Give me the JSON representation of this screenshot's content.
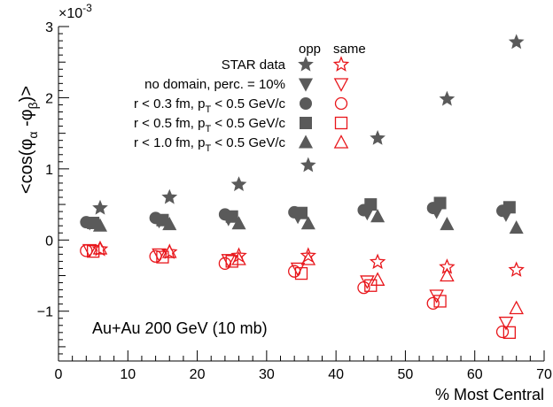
{
  "chart_data": {
    "type": "scatter",
    "title": "",
    "xlabel": "% Most Central",
    "ylabel": "<cos(φ_α - φ_β)>",
    "y_multiplier": "×10^-3",
    "xlim": [
      0,
      70
    ],
    "ylim": [
      -1.7,
      3.0
    ],
    "x_ticks": [
      0,
      10,
      20,
      30,
      40,
      50,
      60,
      70
    ],
    "y_ticks": [
      -1,
      0,
      1,
      2,
      3
    ],
    "grid": false,
    "annotation": "Au+Au 200 GeV (10 mb)",
    "legend": {
      "placement": "top-center",
      "col_headers": [
        "opp",
        "same"
      ],
      "rows": [
        {
          "label": "STAR data",
          "marker": "star"
        },
        {
          "label": "no domain, perc. = 10%",
          "marker": "triangle-down"
        },
        {
          "label": "r < 0.3 fm, p_T < 0.5 GeV/c",
          "marker": "circle"
        },
        {
          "label": "r < 0.5 fm, p_T < 0.5 GeV/c",
          "marker": "square"
        },
        {
          "label": "r < 1.0 fm, p_T < 0.5 GeV/c",
          "marker": "triangle-up"
        }
      ]
    },
    "colors": {
      "opp": "#5a5a5a",
      "same": "#e8161b"
    },
    "series": [
      {
        "name": "STAR data",
        "charge": "opp",
        "marker": "star",
        "x": [
          6,
          16,
          26,
          36,
          46,
          56,
          66
        ],
        "y": [
          0.45,
          0.6,
          0.78,
          1.05,
          1.43,
          1.98,
          2.78
        ]
      },
      {
        "name": "STAR data",
        "charge": "same",
        "marker": "star",
        "x": [
          6,
          16,
          26,
          36,
          46,
          56,
          66
        ],
        "y": [
          -0.13,
          -0.17,
          -0.22,
          -0.22,
          -0.31,
          -0.38,
          -0.42
        ]
      },
      {
        "name": "no domain, perc. = 10%",
        "charge": "opp",
        "marker": "triangle-down",
        "x": [
          4.5,
          14.5,
          24.5,
          34.5,
          44.5,
          54.5,
          64.5
        ],
        "y": [
          0.24,
          0.27,
          0.3,
          0.33,
          0.38,
          0.4,
          0.36
        ]
      },
      {
        "name": "no domain, perc. = 10%",
        "charge": "same",
        "marker": "triangle-down",
        "x": [
          4.5,
          14.5,
          24.5,
          34.5,
          44.5,
          54.5,
          64.5
        ],
        "y": [
          -0.14,
          -0.2,
          -0.28,
          -0.4,
          -0.58,
          -0.78,
          -1.16
        ]
      },
      {
        "name": "r < 0.3 fm, p_T < 0.5 GeV/c",
        "charge": "opp",
        "marker": "circle",
        "x": [
          4,
          14,
          24,
          34,
          44,
          54,
          64
        ],
        "y": [
          0.25,
          0.31,
          0.36,
          0.39,
          0.42,
          0.45,
          0.41
        ]
      },
      {
        "name": "r < 0.3 fm, p_T < 0.5 GeV/c",
        "charge": "same",
        "marker": "circle",
        "x": [
          4,
          14,
          24,
          34,
          44,
          54,
          64
        ],
        "y": [
          -0.15,
          -0.23,
          -0.33,
          -0.44,
          -0.67,
          -0.89,
          -1.29
        ]
      },
      {
        "name": "r < 0.5 fm, p_T < 0.5 GeV/c",
        "charge": "opp",
        "marker": "square",
        "x": [
          5,
          15,
          25,
          35,
          45,
          55,
          65
        ],
        "y": [
          0.24,
          0.28,
          0.33,
          0.38,
          0.5,
          0.52,
          0.46
        ]
      },
      {
        "name": "r < 0.5 fm, p_T < 0.5 GeV/c",
        "charge": "same",
        "marker": "square",
        "x": [
          5,
          15,
          25,
          35,
          45,
          55,
          65
        ],
        "y": [
          -0.16,
          -0.24,
          -0.3,
          -0.47,
          -0.64,
          -0.86,
          -1.3
        ]
      },
      {
        "name": "r < 1.0 fm, p_T < 0.5 GeV/c",
        "charge": "opp",
        "marker": "triangle-up",
        "x": [
          6,
          16,
          26,
          36,
          46,
          56,
          66
        ],
        "y": [
          0.2,
          0.22,
          0.23,
          0.23,
          0.33,
          0.22,
          0.17
        ]
      },
      {
        "name": "r < 1.0 fm, p_T < 0.5 GeV/c",
        "charge": "same",
        "marker": "triangle-up",
        "x": [
          6,
          16,
          26,
          36,
          46,
          56,
          66
        ],
        "y": [
          -0.12,
          -0.17,
          -0.27,
          -0.27,
          -0.56,
          -0.5,
          -0.96
        ]
      }
    ]
  }
}
